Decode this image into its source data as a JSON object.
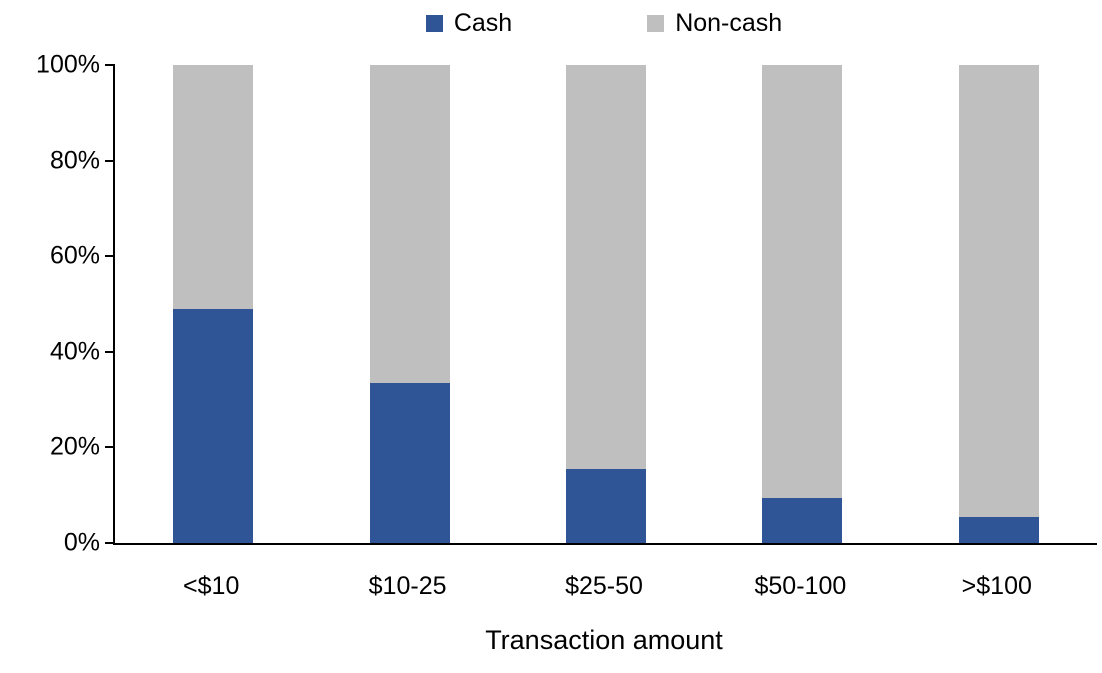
{
  "chart_data": {
    "type": "bar",
    "stacked": true,
    "stacked_total": 100,
    "title": "",
    "xlabel": "Transaction amount",
    "ylabel": "",
    "ylim": [
      0,
      100
    ],
    "yticks": [
      0,
      20,
      40,
      60,
      80,
      100
    ],
    "ytick_suffix": "%",
    "grid": false,
    "legend_position": "top-center",
    "background_color": "#ffffff",
    "axis_color": "#000000",
    "categories": [
      "<$10",
      "$10-25",
      "$25-50",
      "$50-100",
      ">$100"
    ],
    "series": [
      {
        "name": "Cash",
        "color": "#2F5597",
        "values": [
          49,
          33.5,
          15.5,
          9.5,
          5.5
        ]
      },
      {
        "name": "Non-cash",
        "color": "#BFBFBF",
        "values": [
          51,
          66.5,
          84.5,
          90.5,
          94.5
        ]
      }
    ]
  }
}
